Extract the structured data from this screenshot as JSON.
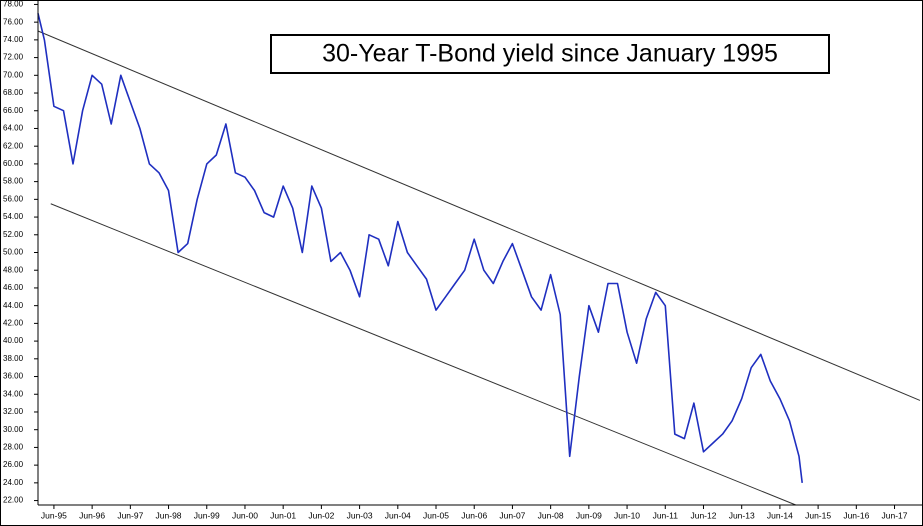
{
  "chart_data": {
    "type": "line",
    "title": "30-Year T-Bond yield since January 1995",
    "x": [
      "Jan-95",
      "Mar-95",
      "Jun-95",
      "Sep-95",
      "Dec-95",
      "Mar-96",
      "Jun-96",
      "Sep-96",
      "Dec-96",
      "Mar-97",
      "Jun-97",
      "Sep-97",
      "Dec-97",
      "Mar-98",
      "Jun-98",
      "Sep-98",
      "Dec-98",
      "Mar-99",
      "Jun-99",
      "Sep-99",
      "Dec-99",
      "Mar-00",
      "Jun-00",
      "Sep-00",
      "Dec-00",
      "Mar-01",
      "Jun-01",
      "Sep-01",
      "Dec-01",
      "Mar-02",
      "Jun-02",
      "Sep-02",
      "Dec-02",
      "Mar-03",
      "Jun-03",
      "Sep-03",
      "Dec-03",
      "Mar-04",
      "Jun-04",
      "Sep-04",
      "Dec-04",
      "Mar-05",
      "Jun-05",
      "Sep-05",
      "Dec-05",
      "Mar-06",
      "Jun-06",
      "Sep-06",
      "Dec-06",
      "Mar-07",
      "Jun-07",
      "Sep-07",
      "Dec-07",
      "Mar-08",
      "Jun-08",
      "Sep-08",
      "Dec-08",
      "Mar-09",
      "Jun-09",
      "Sep-09",
      "Dec-09",
      "Mar-10",
      "Jun-10",
      "Sep-10",
      "Dec-10",
      "Mar-11",
      "Jun-11",
      "Sep-11",
      "Dec-11",
      "Mar-12",
      "Jun-12",
      "Sep-12",
      "Dec-12",
      "Mar-13",
      "Jun-13",
      "Sep-13",
      "Dec-13",
      "Mar-14",
      "Jun-14",
      "Sep-14",
      "Dec-14",
      "Jan-15"
    ],
    "series": [
      {
        "color": "#1f2fc0",
        "values": [
          77,
          74,
          66.5,
          66,
          60,
          66,
          70,
          69,
          64.5,
          70,
          67,
          64,
          60,
          59,
          57,
          50,
          51,
          56,
          60,
          61,
          64.5,
          59,
          58.5,
          57,
          54.5,
          54,
          57.5,
          55,
          50,
          57.5,
          55,
          49,
          50,
          48,
          45,
          52,
          51.5,
          48.5,
          53.5,
          50,
          48.5,
          47,
          43.5,
          45,
          46.5,
          48,
          51.5,
          48,
          46.5,
          49,
          51,
          48,
          45,
          43.5,
          47.5,
          43,
          27,
          36,
          44,
          41,
          46.5,
          46.5,
          41,
          37.5,
          42.5,
          45.5,
          44,
          29.5,
          29,
          33,
          27.5,
          28.5,
          29.5,
          31,
          33.5,
          37,
          38.5,
          35.5,
          33.5,
          31,
          27,
          24
        ]
      }
    ],
    "trendlines": [
      {
        "color": "#333333",
        "x": [
          "Jan-95",
          "Feb-18"
        ],
        "values": [
          75,
          33.3
        ]
      },
      {
        "color": "#333333",
        "x": [
          "May-95",
          "Nov-14"
        ],
        "values": [
          55.5,
          21.5
        ]
      }
    ],
    "xlim": [
      "Jan-95",
      "Feb-18"
    ],
    "xticks": [
      "Jun-95",
      "Jun-96",
      "Jun-97",
      "Jun-98",
      "Jun-99",
      "Jun-00",
      "Jun-01",
      "Jun-02",
      "Jun-03",
      "Jun-04",
      "Jun-05",
      "Jun-06",
      "Jun-07",
      "Jun-08",
      "Jun-09",
      "Jun-10",
      "Jun-11",
      "Jun-12",
      "Jun-13",
      "Jun-14",
      "Jun-15",
      "Jun-16",
      "Jun-17"
    ],
    "ylim": [
      21.5,
      78.5
    ],
    "yticks": [
      {
        "value": 22,
        "label": "22.00"
      },
      {
        "value": 24,
        "label": "24.00"
      },
      {
        "value": 26,
        "label": "26.00"
      },
      {
        "value": 28,
        "label": "28.00"
      },
      {
        "value": 30,
        "label": "30.00"
      },
      {
        "value": 32,
        "label": "32.00"
      },
      {
        "value": 34,
        "label": "34.00"
      },
      {
        "value": 36,
        "label": "36.00"
      },
      {
        "value": 38,
        "label": "38.00"
      },
      {
        "value": 40,
        "label": "40.00"
      },
      {
        "value": 42,
        "label": "42.00"
      },
      {
        "value": 44,
        "label": "44.00"
      },
      {
        "value": 46,
        "label": "46.00"
      },
      {
        "value": 48,
        "label": "48.00"
      },
      {
        "value": 50,
        "label": "50.00"
      },
      {
        "value": 52,
        "label": "52.00"
      },
      {
        "value": 54,
        "label": "54.00"
      },
      {
        "value": 56,
        "label": "56.00"
      },
      {
        "value": 58,
        "label": "58.00"
      },
      {
        "value": 60,
        "label": "60.00"
      },
      {
        "value": 62,
        "label": "62.00"
      },
      {
        "value": 64,
        "label": "64.00"
      },
      {
        "value": 66,
        "label": "66.00"
      },
      {
        "value": 68,
        "label": "68.00"
      },
      {
        "value": 70,
        "label": "70.00"
      },
      {
        "value": 72,
        "label": "72.00"
      },
      {
        "value": 74,
        "label": "74.00"
      },
      {
        "value": 76,
        "label": "76.00"
      },
      {
        "value": 78,
        "label": "78.00"
      }
    ]
  }
}
